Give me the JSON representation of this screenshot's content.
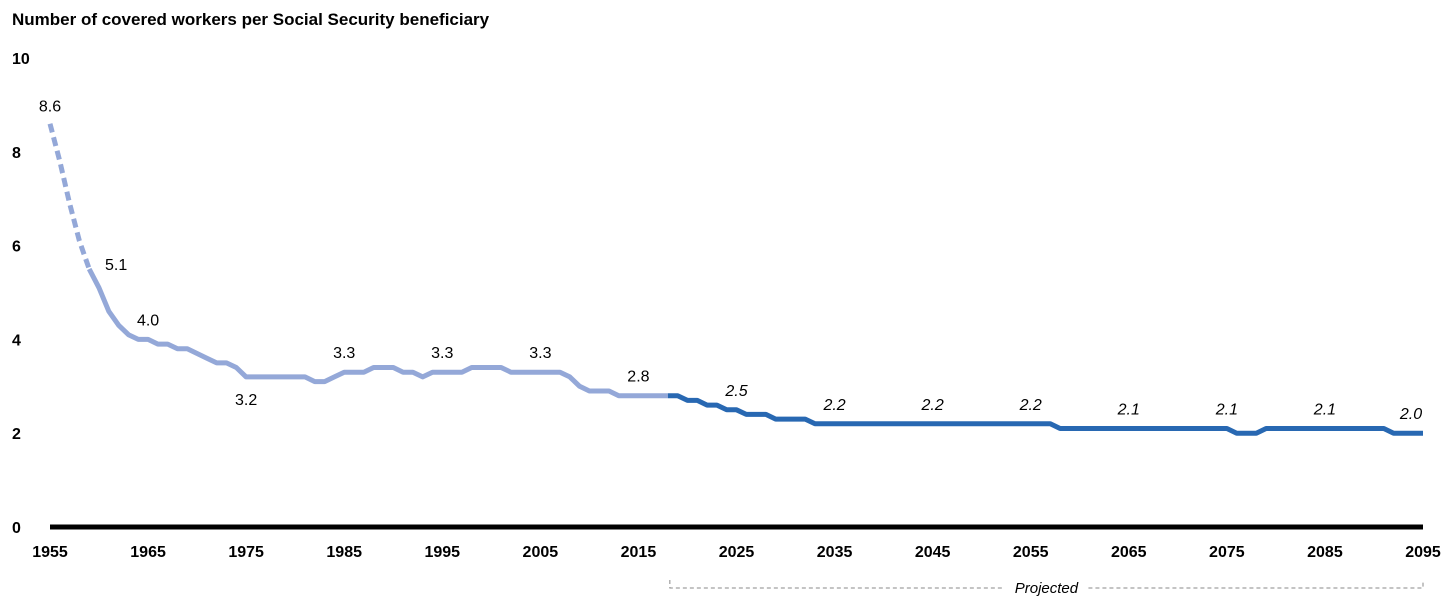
{
  "chart_data": {
    "type": "line",
    "title": "Number of covered workers per Social Security beneficiary",
    "xlabel": "",
    "ylabel": "",
    "xlim": [
      1955,
      2095
    ],
    "ylim": [
      0,
      10
    ],
    "x_ticks": [
      1955,
      1965,
      1975,
      1985,
      1995,
      2005,
      2015,
      2025,
      2035,
      2045,
      2055,
      2065,
      2075,
      2085,
      2095
    ],
    "y_ticks": [
      0,
      2,
      4,
      6,
      8,
      10
    ],
    "grid": false,
    "projection_label": "Projected",
    "projection_start": 2018,
    "colors": {
      "historical": "#94A8D8",
      "projected": "#2868B2",
      "axis": "#000000"
    },
    "series": [
      {
        "style": "dashed",
        "x": [
          1955,
          1956,
          1957,
          1958,
          1959
        ],
        "y": [
          8.6,
          7.8,
          6.9,
          6.1,
          5.5
        ]
      },
      {
        "style": "solid",
        "x": [
          1959,
          1960,
          1961,
          1962,
          1963,
          1964,
          1965,
          1966,
          1967,
          1968,
          1969,
          1970,
          1971,
          1972,
          1973,
          1974,
          1975,
          1976,
          1977,
          1978,
          1979,
          1980,
          1981,
          1982,
          1983,
          1984,
          1985,
          1986,
          1987,
          1988,
          1989,
          1990,
          1991,
          1992,
          1993,
          1994,
          1995,
          1996,
          1997,
          1998,
          1999,
          2000,
          2001,
          2002,
          2003,
          2004,
          2005,
          2006,
          2007,
          2008,
          2009,
          2010,
          2011,
          2012,
          2013,
          2014,
          2015,
          2016,
          2017,
          2018
        ],
        "y": [
          5.5,
          5.1,
          4.6,
          4.3,
          4.1,
          4.0,
          4.0,
          3.9,
          3.9,
          3.8,
          3.8,
          3.7,
          3.6,
          3.5,
          3.5,
          3.4,
          3.2,
          3.2,
          3.2,
          3.2,
          3.2,
          3.2,
          3.2,
          3.1,
          3.1,
          3.2,
          3.3,
          3.3,
          3.3,
          3.4,
          3.4,
          3.4,
          3.3,
          3.3,
          3.2,
          3.3,
          3.3,
          3.3,
          3.3,
          3.4,
          3.4,
          3.4,
          3.4,
          3.3,
          3.3,
          3.3,
          3.3,
          3.3,
          3.3,
          3.2,
          3.0,
          2.9,
          2.9,
          2.9,
          2.8,
          2.8,
          2.8,
          2.8,
          2.8,
          2.8
        ]
      },
      {
        "style": "projected",
        "x": [
          2018,
          2019,
          2020,
          2021,
          2022,
          2023,
          2024,
          2025,
          2026,
          2027,
          2028,
          2029,
          2030,
          2031,
          2032,
          2033,
          2034,
          2035,
          2045,
          2055,
          2056,
          2057,
          2058,
          2059,
          2060,
          2065,
          2070,
          2075,
          2076,
          2077,
          2078,
          2079,
          2080,
          2085,
          2090,
          2091,
          2092,
          2093,
          2094,
          2095
        ],
        "y": [
          2.8,
          2.8,
          2.7,
          2.7,
          2.6,
          2.6,
          2.5,
          2.5,
          2.4,
          2.4,
          2.4,
          2.3,
          2.3,
          2.3,
          2.3,
          2.2,
          2.2,
          2.2,
          2.2,
          2.2,
          2.2,
          2.2,
          2.1,
          2.1,
          2.1,
          2.1,
          2.1,
          2.1,
          2.0,
          2.0,
          2.0,
          2.1,
          2.1,
          2.1,
          2.1,
          2.1,
          2.0,
          2.0,
          2.0,
          2.0
        ]
      }
    ],
    "data_labels": [
      {
        "x": 1955,
        "y": 8.6,
        "text": "8.6",
        "projected": false,
        "pos": "above"
      },
      {
        "x": 1960,
        "y": 5.1,
        "text": "5.1",
        "projected": false,
        "pos": "above-right"
      },
      {
        "x": 1965,
        "y": 4.0,
        "text": "4.0",
        "projected": false,
        "pos": "above"
      },
      {
        "x": 1975,
        "y": 3.2,
        "text": "3.2",
        "projected": false,
        "pos": "below"
      },
      {
        "x": 1985,
        "y": 3.3,
        "text": "3.3",
        "projected": false,
        "pos": "above"
      },
      {
        "x": 1995,
        "y": 3.3,
        "text": "3.3",
        "projected": false,
        "pos": "above"
      },
      {
        "x": 2005,
        "y": 3.3,
        "text": "3.3",
        "projected": false,
        "pos": "above"
      },
      {
        "x": 2015,
        "y": 2.8,
        "text": "2.8",
        "projected": false,
        "pos": "above"
      },
      {
        "x": 2025,
        "y": 2.5,
        "text": "2.5",
        "projected": true,
        "pos": "above"
      },
      {
        "x": 2035,
        "y": 2.2,
        "text": "2.2",
        "projected": true,
        "pos": "above"
      },
      {
        "x": 2045,
        "y": 2.2,
        "text": "2.2",
        "projected": true,
        "pos": "above"
      },
      {
        "x": 2055,
        "y": 2.2,
        "text": "2.2",
        "projected": true,
        "pos": "above"
      },
      {
        "x": 2065,
        "y": 2.1,
        "text": "2.1",
        "projected": true,
        "pos": "above"
      },
      {
        "x": 2075,
        "y": 2.1,
        "text": "2.1",
        "projected": true,
        "pos": "above"
      },
      {
        "x": 2085,
        "y": 2.1,
        "text": "2.1",
        "projected": true,
        "pos": "above"
      },
      {
        "x": 2095,
        "y": 2.0,
        "text": "2.0",
        "projected": true,
        "pos": "above"
      }
    ]
  }
}
